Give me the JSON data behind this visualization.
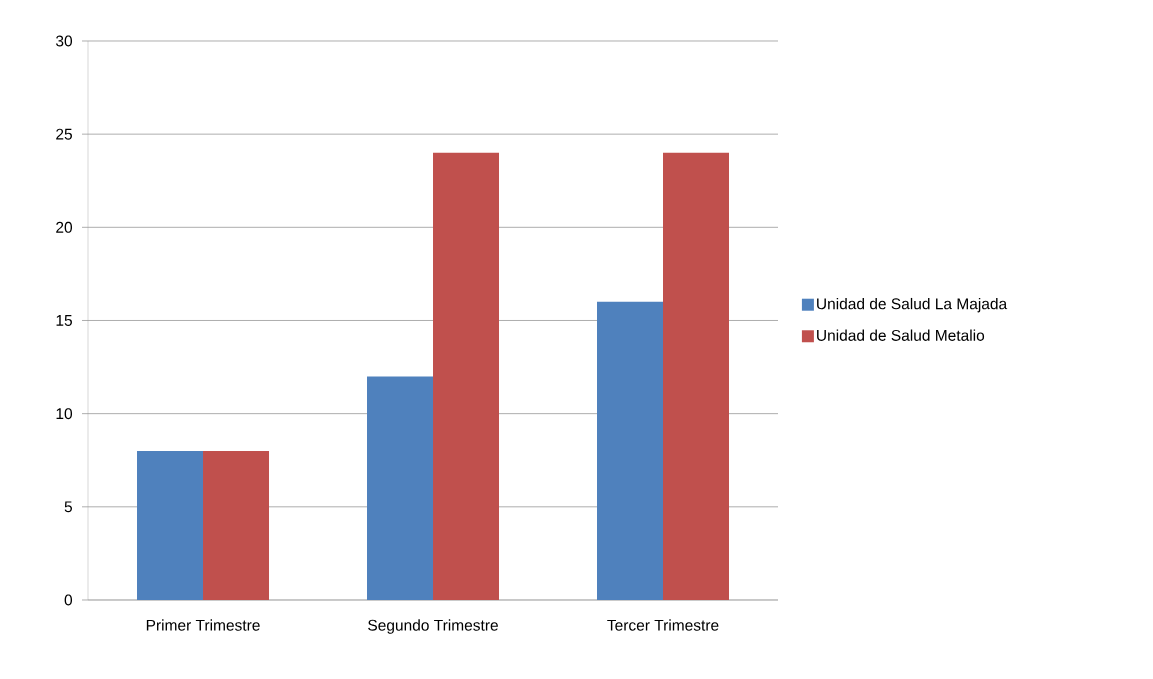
{
  "chart_data": {
    "type": "bar",
    "categories": [
      "Primer Trimestre",
      "Segundo Trimestre",
      "Tercer Trimestre"
    ],
    "series": [
      {
        "name": "Unidad de Salud La Majada",
        "color": "#4f81bd",
        "values": [
          8,
          12,
          16
        ]
      },
      {
        "name": "Unidad de Salud Metalio",
        "color": "#c0504d",
        "values": [
          8,
          24,
          24
        ]
      }
    ],
    "ylim": [
      0,
      30
    ],
    "yticks": [
      0,
      5,
      10,
      15,
      20,
      25,
      30
    ],
    "grid": "y",
    "legend": "right"
  }
}
